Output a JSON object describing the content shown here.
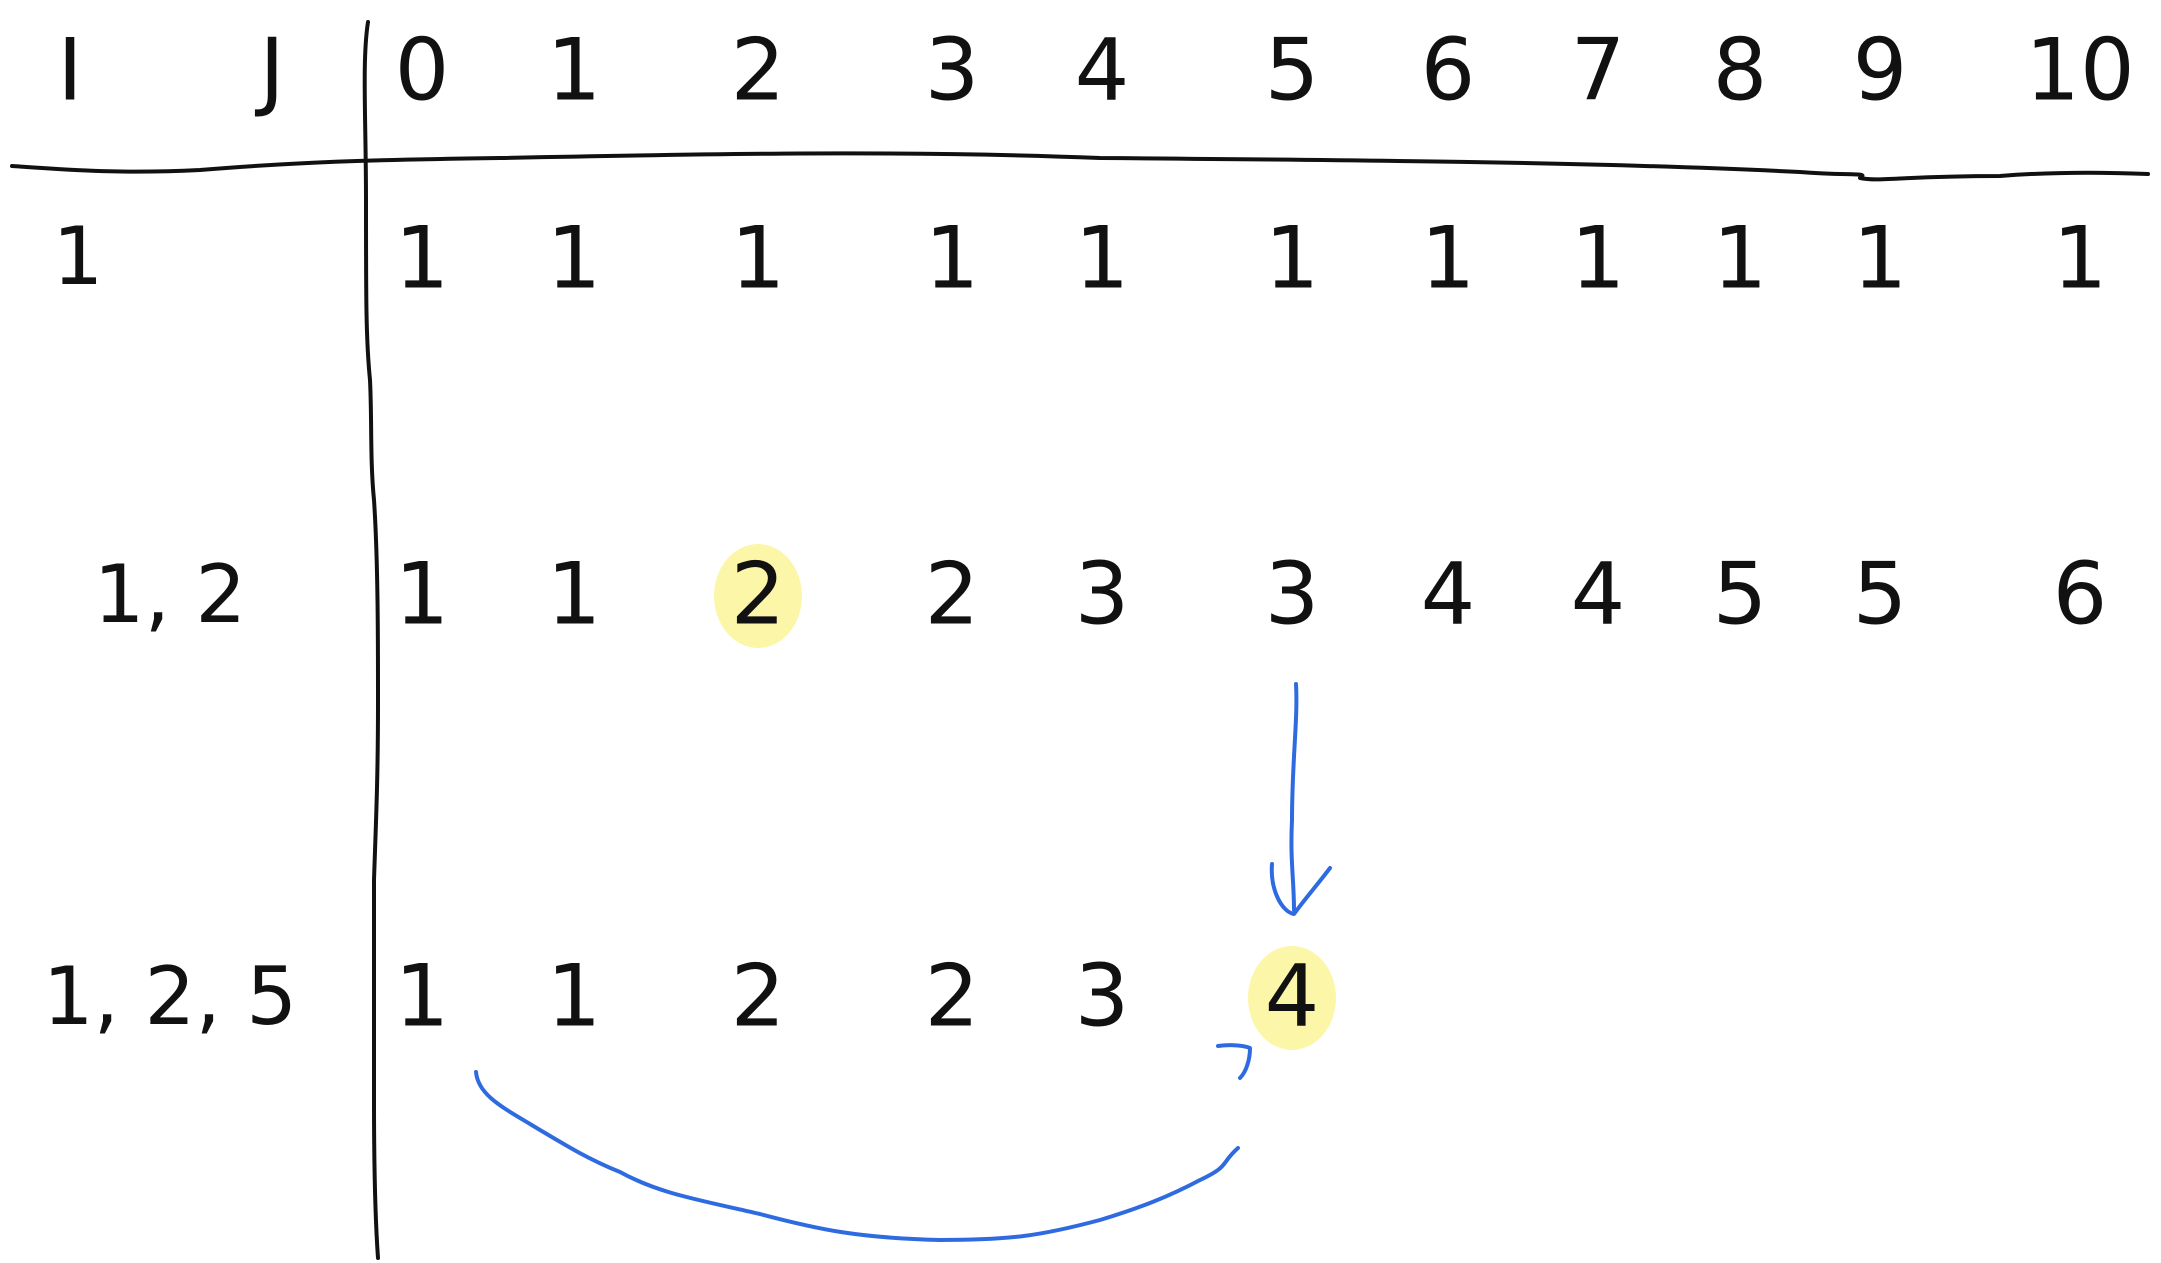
{
  "table": {
    "header_i": "I",
    "header_j": "J",
    "columns": [
      "0",
      "1",
      "2",
      "3",
      "4",
      "5",
      "6",
      "7",
      "8",
      "9",
      "10"
    ],
    "rows": [
      {
        "label": "1",
        "values": [
          "1",
          "1",
          "1",
          "1",
          "1",
          "1",
          "1",
          "1",
          "1",
          "1",
          "1"
        ]
      },
      {
        "label": "1, 2",
        "values": [
          "1",
          "1",
          "2",
          "2",
          "3",
          "3",
          "4",
          "4",
          "5",
          "5",
          "6"
        ]
      },
      {
        "label": "1, 2, 5",
        "values": [
          "1",
          "1",
          "2",
          "2",
          "3",
          "4",
          "",
          "",
          "",
          "",
          ""
        ]
      }
    ]
  },
  "highlights": [
    {
      "row": 1,
      "col": 2
    },
    {
      "row": 2,
      "col": 5
    }
  ],
  "arrows": [
    {
      "from": {
        "row": 1,
        "col": 5
      },
      "to": {
        "row": 2,
        "col": 5
      },
      "shape": "straight-down"
    },
    {
      "from": {
        "row": 2,
        "col": 0
      },
      "to": {
        "row": 2,
        "col": 5
      },
      "shape": "curved-under"
    }
  ],
  "colors": {
    "ink": "#111111",
    "highlight": "#fbf59a",
    "arrow": "#2f6be0",
    "background": "#ffffff"
  }
}
